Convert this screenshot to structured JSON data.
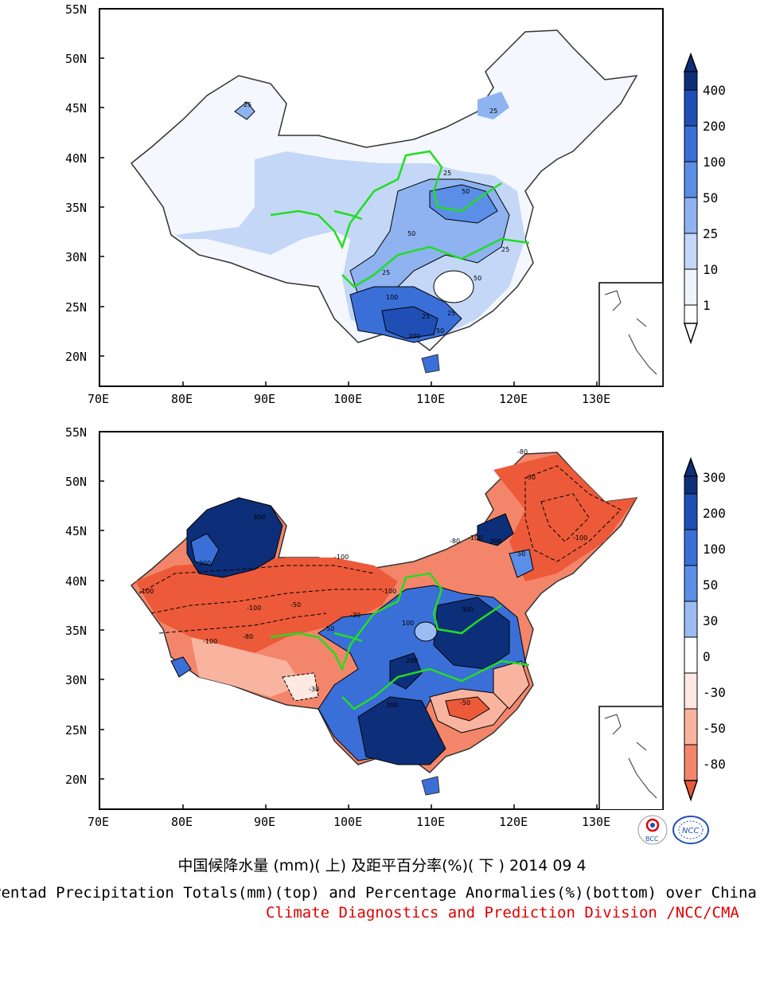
{
  "top_panel": {
    "lat_ticks": [
      "55N",
      "50N",
      "45N",
      "40N",
      "35N",
      "30N",
      "25N",
      "20N"
    ],
    "lon_ticks": [
      "70E",
      "80E",
      "90E",
      "100E",
      "110E",
      "120E",
      "130E"
    ],
    "colorbar": {
      "labels": [
        "400",
        "200",
        "100",
        "50",
        "25",
        "10",
        "1"
      ],
      "colors": [
        "#0d2f7a",
        "#1f4fb5",
        "#3a6fd8",
        "#5b8ee6",
        "#8eb3f0",
        "#c4d7f7",
        "#eef3fc",
        "#ffffff"
      ]
    },
    "contour_labels": [
      "25",
      "25",
      "25",
      "50",
      "50",
      "25",
      "50",
      "25",
      "100",
      "200",
      "50",
      "25",
      "25"
    ]
  },
  "bottom_panel": {
    "lat_ticks": [
      "55N",
      "50N",
      "45N",
      "40N",
      "35N",
      "30N",
      "25N",
      "20N"
    ],
    "lon_ticks": [
      "70E",
      "80E",
      "90E",
      "100E",
      "110E",
      "120E",
      "130E"
    ],
    "colorbar": {
      "labels": [
        "300",
        "200",
        "100",
        "50",
        "30",
        "0",
        "-30",
        "-50",
        "-80"
      ],
      "colors": [
        "#0d2f7a",
        "#1f4fb5",
        "#3a6fd8",
        "#5b8ee6",
        "#9bbcf2",
        "#ffffff",
        "#fde8e2",
        "#f9b4a0",
        "#f3866a",
        "#ec5a3a"
      ]
    },
    "contour_labels": [
      "300",
      "300",
      "-100",
      "-100",
      "-50",
      "-80",
      "-100",
      "-30",
      "50",
      "100",
      "300",
      "200",
      "300",
      "-50",
      "-80",
      "-100",
      "-30",
      "300",
      "-80",
      "-100",
      "-30",
      "50",
      "-100",
      "-100"
    ]
  },
  "titles": {
    "cn": "中国候降水量 (mm)( 上) 及距平百分率(%)( 下 ) 2014 09 4",
    "en": "Pentad Precipitation Totals(mm)(top) and Percentage Anormalies(%)(bottom) over China",
    "credit": "Climate Diagnostics and Prediction Division /NCC/CMA"
  },
  "logos": {
    "bcc": "BCC",
    "ncc": "NCC"
  },
  "line_colors": {
    "rivers": "#22dd22",
    "borders": "#333333"
  }
}
